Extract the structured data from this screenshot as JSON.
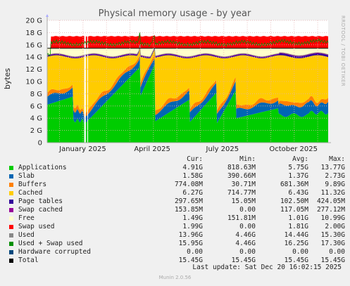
{
  "chart_data": {
    "type": "area",
    "title": "Physical memory usage - by year",
    "ylabel": "bytes",
    "side_label": "RRDTOOL / TOBI OETIKER",
    "ylim": [
      0,
      20
    ],
    "y_unit": "G",
    "y_ticks": [
      "0",
      "2 G",
      "4 G",
      "6 G",
      "8 G",
      "10 G",
      "12 G",
      "14 G",
      "16 G",
      "18 G",
      "20 G"
    ],
    "x_ticks": [
      "January 2025",
      "April 2025",
      "July 2025",
      "October 2025"
    ],
    "stacked_series": [
      {
        "name": "Applications",
        "color": "#00cc00"
      },
      {
        "name": "Slab",
        "color": "#0066b3"
      },
      {
        "name": "Buffers",
        "color": "#ff8000"
      },
      {
        "name": "Cached",
        "color": "#ffcc00"
      },
      {
        "name": "Page tables",
        "color": "#330099"
      },
      {
        "name": "Swap cached",
        "color": "#990099"
      },
      {
        "name": "Free",
        "color": "#ffffcc"
      },
      {
        "name": "Swap used",
        "color": "#ff0000"
      }
    ],
    "lines": [
      {
        "name": "Used",
        "color": "#888888"
      },
      {
        "name": "Used + Swap used",
        "color": "#008f00"
      },
      {
        "name": "Hardware corrupted",
        "color": "#00487d"
      },
      {
        "name": "Total",
        "color": "#000000"
      }
    ],
    "total_gb": 15.45
  },
  "legend": {
    "headers": {
      "cur": "Cur:",
      "min": "Min:",
      "avg": "Avg:",
      "max": "Max:"
    },
    "rows": [
      {
        "name": "Applications",
        "color": "#00cc00",
        "cur": "4.91G",
        "min": "818.63M",
        "avg": "5.75G",
        "max": "13.77G"
      },
      {
        "name": "Slab",
        "color": "#0066b3",
        "cur": "1.58G",
        "min": "390.66M",
        "avg": "1.37G",
        "max": "2.73G"
      },
      {
        "name": "Buffers",
        "color": "#ff8000",
        "cur": "774.08M",
        "min": "30.71M",
        "avg": "681.36M",
        "max": "9.89G"
      },
      {
        "name": "Cached",
        "color": "#ffcc00",
        "cur": "6.27G",
        "min": "714.77M",
        "avg": "6.43G",
        "max": "11.32G"
      },
      {
        "name": "Page tables",
        "color": "#330099",
        "cur": "297.65M",
        "min": "15.05M",
        "avg": "102.50M",
        "max": "424.05M"
      },
      {
        "name": "Swap cached",
        "color": "#990099",
        "cur": "153.85M",
        "min": "0.00",
        "avg": "117.05M",
        "max": "277.12M"
      },
      {
        "name": "Free",
        "color": "#ffffcc",
        "cur": "1.49G",
        "min": "151.81M",
        "avg": "1.01G",
        "max": "10.99G"
      },
      {
        "name": "Swap used",
        "color": "#ff0000",
        "cur": "1.99G",
        "min": "0.00",
        "avg": "1.81G",
        "max": "2.00G"
      },
      {
        "name": "Used",
        "color": "#888888",
        "cur": "13.96G",
        "min": "4.46G",
        "avg": "14.44G",
        "max": "15.30G"
      },
      {
        "name": "Used + Swap used",
        "color": "#008f00",
        "cur": "15.95G",
        "min": "4.46G",
        "avg": "16.25G",
        "max": "17.30G"
      },
      {
        "name": "Hardware corrupted",
        "color": "#00487d",
        "cur": "0.00",
        "min": "0.00",
        "avg": "0.00",
        "max": "0.00"
      },
      {
        "name": "Total",
        "color": "#000000",
        "cur": "15.45G",
        "min": "15.45G",
        "avg": "15.45G",
        "max": "15.45G"
      }
    ]
  },
  "footer": {
    "last_update": "Last update:  Sat Dec 20 16:02:15 2025",
    "munin": "Munin 2.0.56"
  }
}
